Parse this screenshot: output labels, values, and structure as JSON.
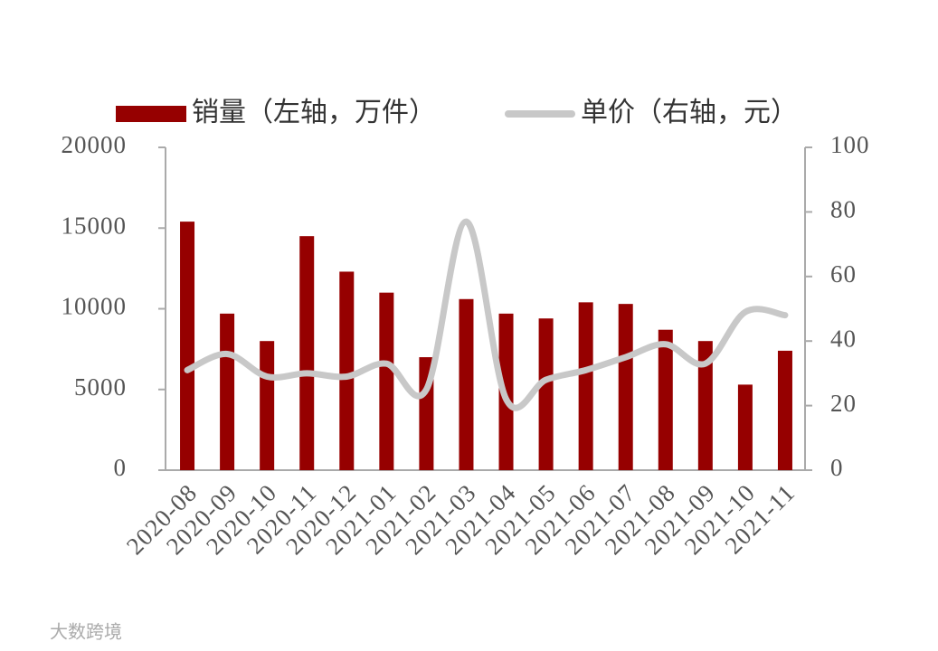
{
  "chart_data": {
    "type": "bar_line",
    "categories": [
      "2020-08",
      "2020-09",
      "2020-10",
      "2020-11",
      "2020-12",
      "2021-01",
      "2021-02",
      "2021-03",
      "2021-04",
      "2021-05",
      "2021-06",
      "2021-07",
      "2021-08",
      "2021-09",
      "2021-10",
      "2021-11"
    ],
    "series": [
      {
        "name": "销量（左轴，万件）",
        "type": "bar",
        "color": "#960000",
        "values": [
          15400,
          9700,
          8000,
          14500,
          12300,
          11000,
          7000,
          10600,
          9700,
          9400,
          10400,
          10300,
          8700,
          8000,
          5300,
          7400
        ]
      },
      {
        "name": "单价（右轴，元）",
        "type": "line",
        "axis": "y2",
        "color": "#c8c8c8",
        "values": [
          31,
          36,
          29,
          30,
          29,
          33,
          25,
          77,
          22,
          28,
          31,
          35,
          39,
          33,
          49,
          48
        ]
      }
    ],
    "ylim": [
      0,
      20000
    ],
    "yticks": [
      0,
      5000,
      10000,
      15000,
      20000
    ],
    "y2lim": [
      0,
      100
    ],
    "y2ticks": [
      0,
      20,
      40,
      60,
      80,
      100
    ],
    "watermark": "大数跨境"
  }
}
